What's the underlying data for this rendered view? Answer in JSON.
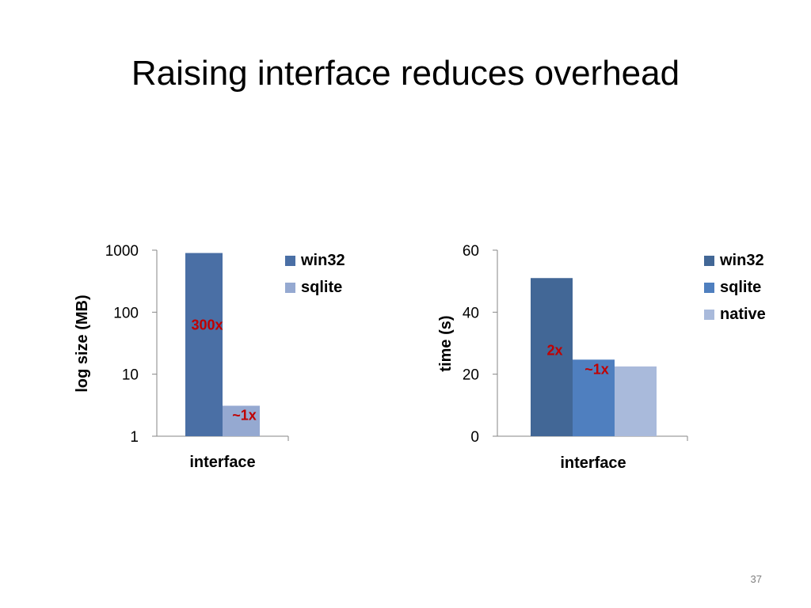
{
  "slide": {
    "title": "Raising interface reduces overhead",
    "page_number": "37"
  },
  "chart_data": [
    {
      "type": "bar",
      "scale": "log",
      "categories": [
        "interface"
      ],
      "xlabel": "interface",
      "ylabel": "log size (MB)",
      "ylim": [
        1,
        1000
      ],
      "yticks": [
        1,
        10,
        100,
        1000
      ],
      "ytick_labels": [
        "1",
        "10",
        "100",
        "1000"
      ],
      "grid": false,
      "legend": "right",
      "series": [
        {
          "name": "win32",
          "values": [
            900
          ],
          "color": "#4a6fa5",
          "annotation": "300x"
        },
        {
          "name": "sqlite",
          "values": [
            3.1
          ],
          "color": "#95a9d1",
          "annotation": "~1x"
        }
      ],
      "annotation_color": "#c00000"
    },
    {
      "type": "bar",
      "scale": "linear",
      "categories": [
        "interface"
      ],
      "xlabel": "interface",
      "ylabel": "time (s)",
      "ylim": [
        0,
        60
      ],
      "yticks": [
        0,
        20,
        40,
        60
      ],
      "ytick_labels": [
        "0",
        "20",
        "40",
        "60"
      ],
      "grid": false,
      "legend": "right",
      "series": [
        {
          "name": "win32",
          "values": [
            51
          ],
          "color": "#426796",
          "annotation": "2x"
        },
        {
          "name": "sqlite",
          "values": [
            24.7
          ],
          "color": "#4f7fbf",
          "annotation": "~1x"
        },
        {
          "name": "native",
          "values": [
            22.5
          ],
          "color": "#a9badb",
          "annotation": ""
        }
      ],
      "annotation_color": "#c00000"
    }
  ]
}
